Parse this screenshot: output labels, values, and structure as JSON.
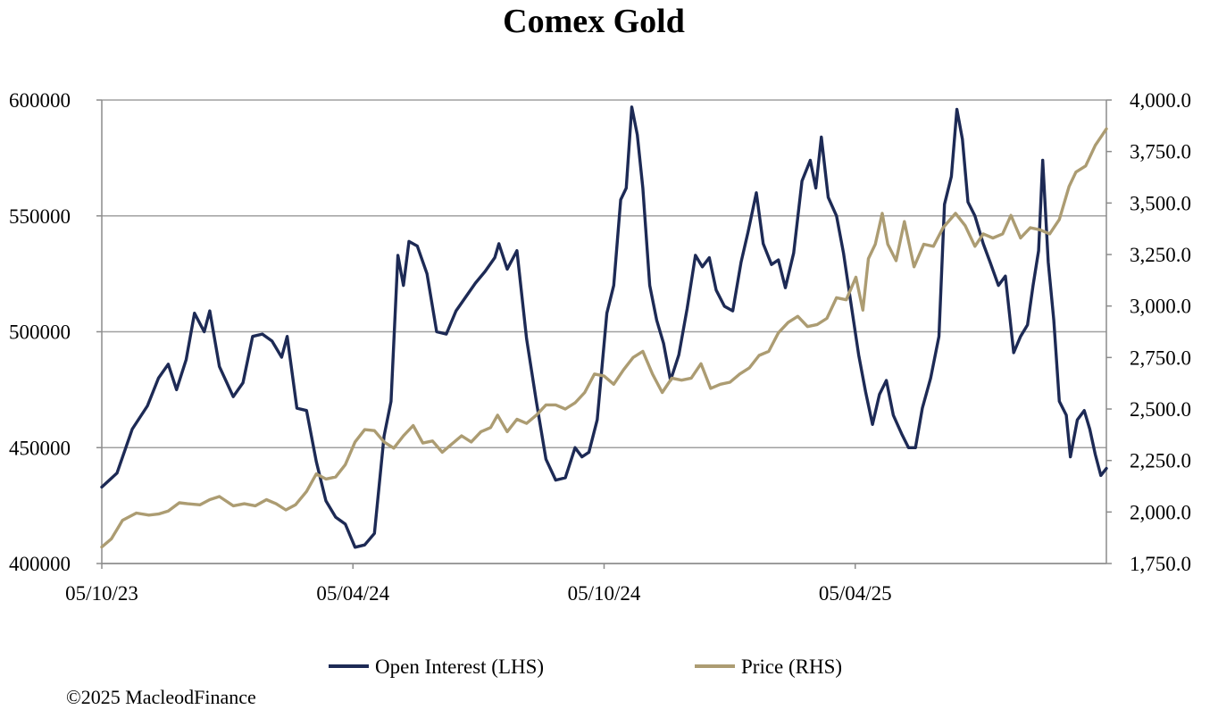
{
  "chart_data": {
    "type": "line",
    "title": "Comex Gold",
    "x_tick_labels": [
      "05/10/23",
      "05/04/24",
      "05/10/24",
      "05/04/25"
    ],
    "x_range": [
      "2023-10-05",
      "2025-09-30"
    ],
    "y_left": {
      "ticks": [
        "400000",
        "450000",
        "500000",
        "550000",
        "600000"
      ],
      "range": [
        400000,
        600000
      ]
    },
    "y_right": {
      "ticks": [
        "1,750.0",
        "2,000.0",
        "2,250.0",
        "2,500.0",
        "2,750.0",
        "3,000.0",
        "3,250.0",
        "3,500.0",
        "3,750.0",
        "4,000.0"
      ],
      "range": [
        1750,
        4000
      ]
    },
    "grid": "horizontal",
    "legend_position": "bottom",
    "series": [
      {
        "name": "Open Interest (LHS)",
        "axis": "left",
        "color": "#1d2a55",
        "points": [
          [
            "2023-10-05",
            433000
          ],
          [
            "2023-10-16",
            439000
          ],
          [
            "2023-10-27",
            458000
          ],
          [
            "2023-11-07",
            468000
          ],
          [
            "2023-11-15",
            480000
          ],
          [
            "2023-11-22",
            486000
          ],
          [
            "2023-11-28",
            475000
          ],
          [
            "2023-12-05",
            488000
          ],
          [
            "2023-12-11",
            508000
          ],
          [
            "2023-12-18",
            500000
          ],
          [
            "2023-12-22",
            509000
          ],
          [
            "2023-12-29",
            485000
          ],
          [
            "2024-01-08",
            472000
          ],
          [
            "2024-01-15",
            478000
          ],
          [
            "2024-01-22",
            498000
          ],
          [
            "2024-01-29",
            499000
          ],
          [
            "2024-02-05",
            496000
          ],
          [
            "2024-02-12",
            489000
          ],
          [
            "2024-02-16",
            498000
          ],
          [
            "2024-02-23",
            467000
          ],
          [
            "2024-03-01",
            466000
          ],
          [
            "2024-03-08",
            444000
          ],
          [
            "2024-03-15",
            427000
          ],
          [
            "2024-03-22",
            420000
          ],
          [
            "2024-03-29",
            417000
          ],
          [
            "2024-04-05",
            407000
          ],
          [
            "2024-04-12",
            408000
          ],
          [
            "2024-04-19",
            413000
          ],
          [
            "2024-04-26",
            455000
          ],
          [
            "2024-05-01",
            470000
          ],
          [
            "2024-05-06",
            533000
          ],
          [
            "2024-05-10",
            520000
          ],
          [
            "2024-05-14",
            539000
          ],
          [
            "2024-05-20",
            537000
          ],
          [
            "2024-05-27",
            525000
          ],
          [
            "2024-06-03",
            500000
          ],
          [
            "2024-06-10",
            499000
          ],
          [
            "2024-06-17",
            509000
          ],
          [
            "2024-06-24",
            515000
          ],
          [
            "2024-07-01",
            521000
          ],
          [
            "2024-07-08",
            526000
          ],
          [
            "2024-07-15",
            532000
          ],
          [
            "2024-07-18",
            538000
          ],
          [
            "2024-07-24",
            527000
          ],
          [
            "2024-07-31",
            535000
          ],
          [
            "2024-08-07",
            497000
          ],
          [
            "2024-08-14",
            470000
          ],
          [
            "2024-08-21",
            445000
          ],
          [
            "2024-08-28",
            436000
          ],
          [
            "2024-09-04",
            437000
          ],
          [
            "2024-09-11",
            450000
          ],
          [
            "2024-09-16",
            446000
          ],
          [
            "2024-09-21",
            448000
          ],
          [
            "2024-09-27",
            462000
          ],
          [
            "2024-10-04",
            508000
          ],
          [
            "2024-10-09",
            520000
          ],
          [
            "2024-10-14",
            557000
          ],
          [
            "2024-10-18",
            562000
          ],
          [
            "2024-10-22",
            597000
          ],
          [
            "2024-10-26",
            585000
          ],
          [
            "2024-10-30",
            562000
          ],
          [
            "2024-11-04",
            520000
          ],
          [
            "2024-11-09",
            505000
          ],
          [
            "2024-11-14",
            495000
          ],
          [
            "2024-11-19",
            479000
          ],
          [
            "2024-11-25",
            490000
          ],
          [
            "2024-12-01",
            510000
          ],
          [
            "2024-12-07",
            533000
          ],
          [
            "2024-12-12",
            528000
          ],
          [
            "2024-12-17",
            532000
          ],
          [
            "2024-12-22",
            518000
          ],
          [
            "2024-12-28",
            511000
          ],
          [
            "2025-01-03",
            509000
          ],
          [
            "2025-01-09",
            530000
          ],
          [
            "2025-01-14",
            543000
          ],
          [
            "2025-01-20",
            560000
          ],
          [
            "2025-01-25",
            538000
          ],
          [
            "2025-01-31",
            529000
          ],
          [
            "2025-02-05",
            531000
          ],
          [
            "2025-02-10",
            519000
          ],
          [
            "2025-02-16",
            534000
          ],
          [
            "2025-02-22",
            565000
          ],
          [
            "2025-02-28",
            574000
          ],
          [
            "2025-03-04",
            562000
          ],
          [
            "2025-03-08",
            584000
          ],
          [
            "2025-03-13",
            558000
          ],
          [
            "2025-03-19",
            550000
          ],
          [
            "2025-03-24",
            534000
          ],
          [
            "2025-03-29",
            514000
          ],
          [
            "2025-04-04",
            490000
          ],
          [
            "2025-04-09",
            474000
          ],
          [
            "2025-04-14",
            460000
          ],
          [
            "2025-04-19",
            473000
          ],
          [
            "2025-04-24",
            479000
          ],
          [
            "2025-04-29",
            464000
          ],
          [
            "2025-05-05",
            456000
          ],
          [
            "2025-05-10",
            450000
          ],
          [
            "2025-05-15",
            450000
          ],
          [
            "2025-05-20",
            467000
          ],
          [
            "2025-05-26",
            480000
          ],
          [
            "2025-06-01",
            498000
          ],
          [
            "2025-06-05",
            555000
          ],
          [
            "2025-06-10",
            567000
          ],
          [
            "2025-06-14",
            596000
          ],
          [
            "2025-06-18",
            583000
          ],
          [
            "2025-06-22",
            556000
          ],
          [
            "2025-06-27",
            550000
          ],
          [
            "2025-07-03",
            538000
          ],
          [
            "2025-07-08",
            530000
          ],
          [
            "2025-07-14",
            520000
          ],
          [
            "2025-07-19",
            524000
          ],
          [
            "2025-07-25",
            491000
          ],
          [
            "2025-07-30",
            498000
          ],
          [
            "2025-08-04",
            503000
          ],
          [
            "2025-08-08",
            520000
          ],
          [
            "2025-08-12",
            535000
          ],
          [
            "2025-08-15",
            574000
          ],
          [
            "2025-08-19",
            530000
          ],
          [
            "2025-08-23",
            505000
          ],
          [
            "2025-08-27",
            470000
          ],
          [
            "2025-09-01",
            464000
          ],
          [
            "2025-09-04",
            446000
          ],
          [
            "2025-09-09",
            462000
          ],
          [
            "2025-09-14",
            466000
          ],
          [
            "2025-09-18",
            458000
          ],
          [
            "2025-09-22",
            447000
          ],
          [
            "2025-09-26",
            438000
          ],
          [
            "2025-09-30",
            441000
          ]
        ]
      },
      {
        "name": "Price (RHS)",
        "axis": "right",
        "color": "#ac9c72",
        "points": [
          [
            "2023-10-05",
            1830
          ],
          [
            "2023-10-12",
            1870
          ],
          [
            "2023-10-20",
            1960
          ],
          [
            "2023-10-30",
            1995
          ],
          [
            "2023-11-08",
            1985
          ],
          [
            "2023-11-15",
            1990
          ],
          [
            "2023-11-22",
            2005
          ],
          [
            "2023-11-30",
            2045
          ],
          [
            "2023-12-06",
            2040
          ],
          [
            "2023-12-15",
            2035
          ],
          [
            "2023-12-22",
            2060
          ],
          [
            "2023-12-29",
            2075
          ],
          [
            "2024-01-08",
            2030
          ],
          [
            "2024-01-16",
            2040
          ],
          [
            "2024-01-24",
            2030
          ],
          [
            "2024-02-01",
            2060
          ],
          [
            "2024-02-08",
            2040
          ],
          [
            "2024-02-15",
            2010
          ],
          [
            "2024-02-22",
            2035
          ],
          [
            "2024-03-01",
            2100
          ],
          [
            "2024-03-08",
            2185
          ],
          [
            "2024-03-15",
            2160
          ],
          [
            "2024-03-22",
            2170
          ],
          [
            "2024-03-29",
            2230
          ],
          [
            "2024-04-05",
            2340
          ],
          [
            "2024-04-12",
            2400
          ],
          [
            "2024-04-19",
            2395
          ],
          [
            "2024-04-26",
            2340
          ],
          [
            "2024-05-03",
            2310
          ],
          [
            "2024-05-10",
            2370
          ],
          [
            "2024-05-17",
            2420
          ],
          [
            "2024-05-24",
            2335
          ],
          [
            "2024-05-31",
            2345
          ],
          [
            "2024-06-07",
            2290
          ],
          [
            "2024-06-14",
            2330
          ],
          [
            "2024-06-21",
            2370
          ],
          [
            "2024-06-28",
            2340
          ],
          [
            "2024-07-05",
            2390
          ],
          [
            "2024-07-12",
            2410
          ],
          [
            "2024-07-17",
            2470
          ],
          [
            "2024-07-24",
            2390
          ],
          [
            "2024-07-31",
            2450
          ],
          [
            "2024-08-07",
            2430
          ],
          [
            "2024-08-14",
            2470
          ],
          [
            "2024-08-21",
            2520
          ],
          [
            "2024-08-28",
            2520
          ],
          [
            "2024-09-04",
            2500
          ],
          [
            "2024-09-11",
            2530
          ],
          [
            "2024-09-18",
            2580
          ],
          [
            "2024-09-25",
            2670
          ],
          [
            "2024-10-02",
            2660
          ],
          [
            "2024-10-09",
            2620
          ],
          [
            "2024-10-16",
            2690
          ],
          [
            "2024-10-23",
            2750
          ],
          [
            "2024-10-30",
            2780
          ],
          [
            "2024-11-06",
            2670
          ],
          [
            "2024-11-13",
            2580
          ],
          [
            "2024-11-20",
            2650
          ],
          [
            "2024-11-27",
            2640
          ],
          [
            "2024-12-04",
            2650
          ],
          [
            "2024-12-11",
            2720
          ],
          [
            "2024-12-18",
            2600
          ],
          [
            "2024-12-25",
            2620
          ],
          [
            "2025-01-01",
            2630
          ],
          [
            "2025-01-08",
            2670
          ],
          [
            "2025-01-15",
            2700
          ],
          [
            "2025-01-22",
            2760
          ],
          [
            "2025-01-29",
            2780
          ],
          [
            "2025-02-05",
            2870
          ],
          [
            "2025-02-12",
            2920
          ],
          [
            "2025-02-19",
            2950
          ],
          [
            "2025-02-26",
            2900
          ],
          [
            "2025-03-05",
            2910
          ],
          [
            "2025-03-12",
            2940
          ],
          [
            "2025-03-19",
            3040
          ],
          [
            "2025-03-26",
            3030
          ],
          [
            "2025-04-02",
            3140
          ],
          [
            "2025-04-07",
            2980
          ],
          [
            "2025-04-11",
            3230
          ],
          [
            "2025-04-16",
            3300
          ],
          [
            "2025-04-21",
            3450
          ],
          [
            "2025-04-25",
            3300
          ],
          [
            "2025-05-01",
            3220
          ],
          [
            "2025-05-07",
            3410
          ],
          [
            "2025-05-14",
            3190
          ],
          [
            "2025-05-21",
            3300
          ],
          [
            "2025-05-28",
            3290
          ],
          [
            "2025-06-04",
            3380
          ],
          [
            "2025-06-13",
            3450
          ],
          [
            "2025-06-20",
            3390
          ],
          [
            "2025-06-27",
            3290
          ],
          [
            "2025-07-03",
            3350
          ],
          [
            "2025-07-10",
            3330
          ],
          [
            "2025-07-17",
            3350
          ],
          [
            "2025-07-23",
            3440
          ],
          [
            "2025-07-30",
            3330
          ],
          [
            "2025-08-06",
            3380
          ],
          [
            "2025-08-13",
            3370
          ],
          [
            "2025-08-20",
            3350
          ],
          [
            "2025-08-27",
            3420
          ],
          [
            "2025-09-03",
            3580
          ],
          [
            "2025-09-08",
            3650
          ],
          [
            "2025-09-15",
            3680
          ],
          [
            "2025-09-22",
            3780
          ],
          [
            "2025-09-27",
            3830
          ],
          [
            "2025-09-30",
            3860
          ]
        ]
      }
    ]
  },
  "copyright": "©2025 MacleodFinance"
}
